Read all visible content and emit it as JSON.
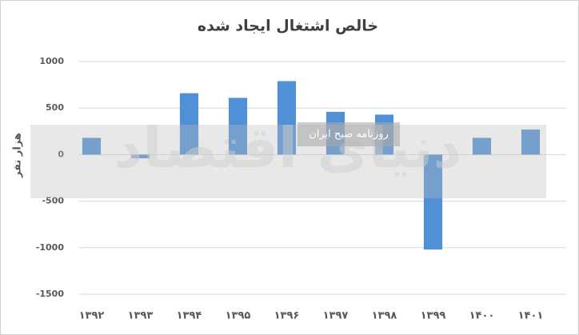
{
  "chart_data": {
    "type": "bar",
    "title": "خالص اشتغال ایجاد شده",
    "y_label": "هزار نفر",
    "categories": [
      "۱۳۹۲",
      "۱۳۹۳",
      "۱۳۹۴",
      "۱۳۹۵",
      "۱۳۹۶",
      "۱۳۹۷",
      "۱۳۹۸",
      "۱۳۹۹",
      "۱۴۰۰",
      "۱۴۰۱"
    ],
    "values": [
      180,
      -40,
      660,
      610,
      790,
      460,
      430,
      -1020,
      180,
      270
    ],
    "color": "#4f90d6",
    "ylim": [
      -1500,
      1000
    ],
    "yticks": [
      1000,
      500,
      0,
      -500,
      -1000,
      -1500
    ],
    "grid": true,
    "watermark": "دنیای اقتصاد",
    "watermark_subtitle": "روزنامه صبح ایران"
  }
}
